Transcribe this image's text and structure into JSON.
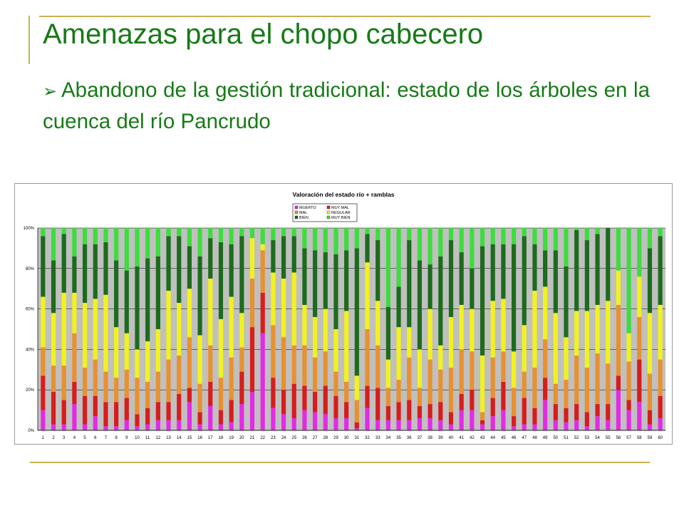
{
  "slide": {
    "title": "Amenazas para el chopo cabecero",
    "bullet_symbol": "➢",
    "bullet_text": "Abandono de la gestión tradicional: estado de los árboles en la cuenca del río Pancrudo"
  },
  "chart_data": {
    "type": "bar",
    "stacked": true,
    "normalized": true,
    "title": "Valoración del estado río + ramblas",
    "xlabel": "",
    "ylabel": "",
    "ylim": [
      0,
      100
    ],
    "yticks": [
      "0%",
      "20%",
      "40%",
      "60%",
      "80%",
      "100%"
    ],
    "grid": true,
    "legend_position": "top-center",
    "plot_background": "#c0c0c0",
    "categories": [
      "1",
      "2",
      "3",
      "4",
      "5",
      "6",
      "7",
      "8",
      "9",
      "10",
      "11",
      "12",
      "13",
      "14",
      "15",
      "16",
      "17",
      "18",
      "19",
      "20",
      "21",
      "22",
      "23",
      "24",
      "25",
      "26",
      "27",
      "28",
      "29",
      "30",
      "31",
      "32",
      "33",
      "34",
      "35",
      "36",
      "37",
      "38",
      "39",
      "40",
      "41",
      "42",
      "43",
      "44",
      "45",
      "46",
      "47",
      "48",
      "49",
      "50",
      "51",
      "52",
      "53",
      "54",
      "55",
      "56",
      "57",
      "58",
      "59",
      "60"
    ],
    "series": [
      {
        "name": "MUERTO",
        "color": "#e42be4",
        "values": [
          10,
          3,
          3,
          13,
          3,
          7,
          2,
          2,
          5,
          2,
          3,
          5,
          5,
          5,
          14,
          3,
          12,
          3,
          4,
          13,
          19,
          48,
          11,
          8,
          6,
          10,
          9,
          8,
          6,
          6,
          1,
          11,
          5,
          5,
          5,
          5,
          6,
          6,
          5,
          3,
          10,
          10,
          3,
          7,
          10,
          2,
          3,
          3,
          15,
          5,
          4,
          5,
          2,
          7,
          5,
          20,
          10,
          14,
          3,
          6
        ]
      },
      {
        "name": "MUY MAL",
        "color": "#d81c1c",
        "values": [
          17,
          16,
          12,
          11,
          14,
          10,
          12,
          12,
          11,
          6,
          8,
          9,
          9,
          13,
          7,
          6,
          12,
          7,
          11,
          16,
          32,
          20,
          15,
          12,
          17,
          12,
          10,
          14,
          11,
          8,
          3,
          11,
          16,
          7,
          9,
          10,
          6,
          7,
          9,
          6,
          8,
          10,
          2,
          9,
          14,
          5,
          13,
          8,
          11,
          8,
          7,
          8,
          7,
          6,
          8,
          7,
          5,
          21,
          7,
          11
        ]
      },
      {
        "name": "MAL",
        "color": "#e8912f",
        "values": [
          14,
          13,
          17,
          24,
          14,
          18,
          15,
          12,
          14,
          18,
          13,
          15,
          21,
          19,
          25,
          14,
          18,
          16,
          21,
          12,
          24,
          21,
          26,
          26,
          19,
          20,
          17,
          17,
          12,
          10,
          11,
          28,
          21,
          9,
          11,
          21,
          9,
          22,
          16,
          22,
          22,
          19,
          4,
          20,
          15,
          14,
          13,
          20,
          19,
          10,
          14,
          24,
          22,
          25,
          20,
          35,
          19,
          21,
          18,
          18
        ]
      },
      {
        "name": "REGULAR",
        "color": "#f2f21e",
        "values": [
          25,
          26,
          36,
          20,
          32,
          30,
          38,
          25,
          18,
          14,
          20,
          21,
          34,
          26,
          24,
          24,
          33,
          29,
          30,
          17,
          20,
          3,
          26,
          29,
          36,
          20,
          20,
          21,
          21,
          35,
          12,
          33,
          22,
          14,
          26,
          15,
          19,
          25,
          12,
          25,
          22,
          21,
          28,
          28,
          26,
          18,
          23,
          38,
          26,
          35,
          21,
          22,
          28,
          24,
          31,
          17,
          14,
          20,
          30,
          27
        ]
      },
      {
        "name": "BIEN",
        "color": "#1d6b1d",
        "values": [
          30,
          26,
          29,
          18,
          29,
          27,
          26,
          33,
          31,
          41,
          41,
          36,
          27,
          33,
          21,
          39,
          20,
          38,
          26,
          38,
          0,
          0,
          16,
          21,
          18,
          28,
          33,
          28,
          37,
          30,
          63,
          14,
          30,
          26,
          20,
          43,
          44,
          22,
          44,
          38,
          26,
          20,
          54,
          28,
          27,
          53,
          44,
          23,
          18,
          31,
          35,
          40,
          35,
          35,
          36,
          0,
          0,
          0,
          32,
          34
        ]
      },
      {
        "name": "MUY BIEN",
        "color": "#3ddd3d",
        "values": [
          4,
          16,
          3,
          14,
          8,
          8,
          7,
          16,
          21,
          19,
          15,
          14,
          4,
          4,
          9,
          14,
          5,
          7,
          8,
          4,
          5,
          8,
          6,
          4,
          4,
          10,
          11,
          12,
          13,
          11,
          10,
          3,
          6,
          39,
          29,
          6,
          16,
          18,
          14,
          6,
          12,
          20,
          9,
          8,
          8,
          8,
          4,
          8,
          11,
          11,
          19,
          1,
          6,
          3,
          0,
          21,
          52,
          24,
          10,
          4
        ]
      }
    ]
  }
}
